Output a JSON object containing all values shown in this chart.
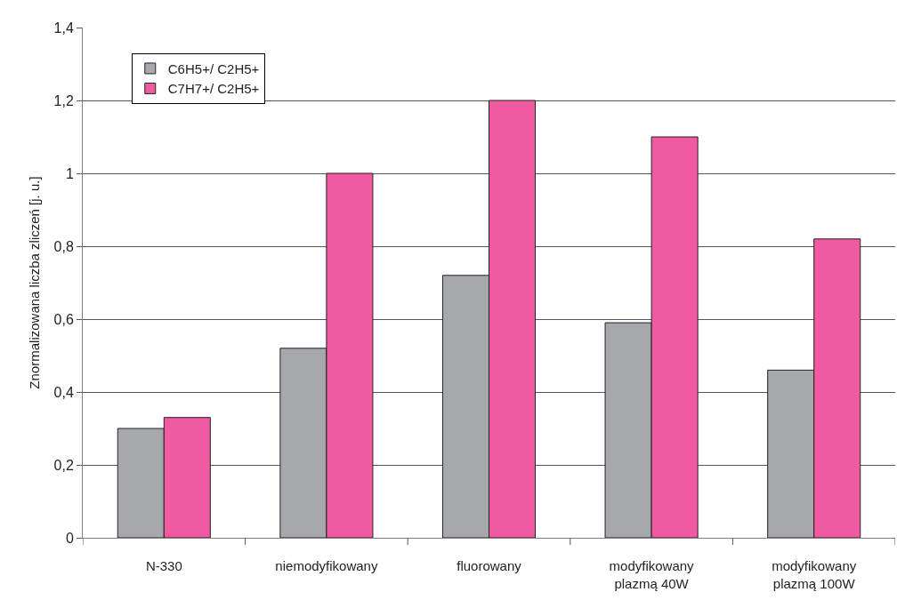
{
  "chart_data": {
    "type": "bar",
    "ylabel": "Znormalizowana liczba zliczeń [j. u.]",
    "categories": [
      "N-330",
      "niemodyfikowany",
      "fluorowany",
      "modyfikowany\nplazmą 40W",
      "modyfikowany\nplazmą 100W"
    ],
    "series": [
      {
        "name": "C6H5+/ C2H5+",
        "color": "#a7a8ac",
        "values": [
          0.3,
          0.52,
          0.72,
          0.59,
          0.46
        ]
      },
      {
        "name": "C7H7+/ C2H5+",
        "color": "#ef5aa0",
        "values": [
          0.33,
          1.0,
          1.2,
          1.1,
          0.82
        ]
      }
    ],
    "ylim": [
      0,
      1.4
    ],
    "yticks": [
      0,
      {
        "value": 0.2,
        "label": "0,2"
      },
      {
        "value": 0.4,
        "label": "0,4"
      },
      {
        "value": 0.6,
        "label": "0,6"
      },
      {
        "value": 0.8,
        "label": "0,8"
      },
      1,
      {
        "value": 1.2,
        "label": "1,2"
      },
      {
        "value": 1.4,
        "label": "1,4"
      }
    ],
    "grid": "y",
    "legend": "top left"
  }
}
